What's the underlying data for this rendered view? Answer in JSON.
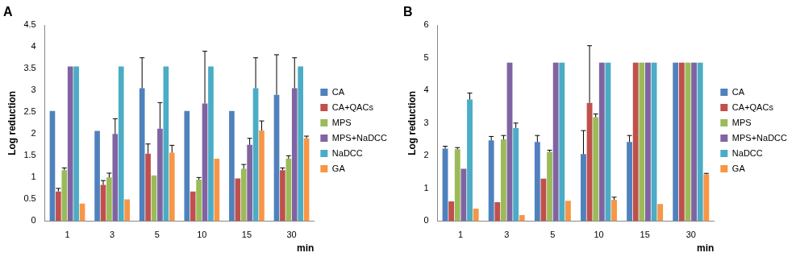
{
  "chart_data": [
    {
      "type": "bar",
      "title": "A",
      "x_label": "min",
      "y_label": "Log reduction",
      "categories": [
        "1",
        "3",
        "5",
        "10",
        "15",
        "30"
      ],
      "ylim": [
        0,
        4.5
      ],
      "yticks": [
        0,
        0.5,
        1,
        1.5,
        2,
        2.5,
        3,
        3.5,
        4,
        4.5
      ],
      "grid": false,
      "legend": "right",
      "series": [
        {
          "name": "CA",
          "color": "#4f81bd",
          "values": [
            2.53,
            2.07,
            3.05,
            2.53,
            2.53,
            2.9
          ],
          "errors": [
            null,
            null,
            0.7,
            null,
            null,
            0.92
          ]
        },
        {
          "name": "CA+QACs",
          "color": "#c0504d",
          "values": [
            0.68,
            0.83,
            1.55,
            0.68,
            0.98,
            1.17
          ],
          "errors": [
            0.07,
            0.1,
            0.22,
            null,
            null,
            0.05
          ]
        },
        {
          "name": "MPS",
          "color": "#9bbb59",
          "values": [
            1.17,
            1.0,
            1.05,
            0.95,
            1.2,
            1.43
          ],
          "errors": [
            0.05,
            0.1,
            null,
            0.05,
            0.1,
            0.07
          ]
        },
        {
          "name": "MPS+NaDCC",
          "color": "#8064a2",
          "values": [
            3.55,
            2.0,
            2.12,
            2.7,
            1.75,
            3.05
          ],
          "errors": [
            null,
            0.35,
            0.6,
            1.2,
            0.15,
            0.7
          ]
        },
        {
          "name": "NaDCC",
          "color": "#4bacc6",
          "values": [
            3.55,
            3.55,
            3.55,
            3.55,
            3.05,
            3.55
          ],
          "errors": [
            null,
            null,
            null,
            null,
            0.7,
            null
          ]
        },
        {
          "name": "GA",
          "color": "#f79646",
          "values": [
            0.4,
            0.5,
            1.57,
            1.43,
            2.08,
            1.9
          ],
          "errors": [
            null,
            null,
            0.17,
            null,
            0.22,
            0.05
          ]
        }
      ]
    },
    {
      "type": "bar",
      "title": "B",
      "x_label": "min",
      "y_label": "Log reduction",
      "categories": [
        "1",
        "3",
        "5",
        "10",
        "15",
        "30"
      ],
      "ylim": [
        0,
        6
      ],
      "yticks": [
        0,
        1,
        2,
        3,
        4,
        5,
        6
      ],
      "grid": false,
      "legend": "right",
      "series": [
        {
          "name": "CA",
          "color": "#4f81bd",
          "values": [
            2.22,
            2.47,
            2.42,
            2.05,
            2.42,
            4.85
          ],
          "errors": [
            0.07,
            0.12,
            0.2,
            0.72,
            0.2,
            null
          ]
        },
        {
          "name": "CA+QACs",
          "color": "#c0504d",
          "values": [
            0.6,
            0.58,
            1.3,
            3.62,
            4.85,
            4.85
          ],
          "errors": [
            null,
            null,
            null,
            1.75,
            null,
            null
          ]
        },
        {
          "name": "MPS",
          "color": "#9bbb59",
          "values": [
            2.2,
            2.5,
            2.12,
            3.18,
            4.85,
            4.85
          ],
          "errors": [
            0.05,
            0.12,
            0.05,
            0.1,
            null,
            null
          ]
        },
        {
          "name": "MPS+NaDCC",
          "color": "#8064a2",
          "values": [
            1.6,
            4.85,
            4.85,
            4.85,
            4.85,
            4.85
          ],
          "errors": [
            null,
            null,
            null,
            null,
            null,
            null
          ]
        },
        {
          "name": "NaDCC",
          "color": "#4bacc6",
          "values": [
            3.72,
            2.85,
            4.85,
            4.85,
            4.85,
            4.85
          ],
          "errors": [
            0.2,
            0.15,
            null,
            null,
            null,
            null
          ]
        },
        {
          "name": "GA",
          "color": "#f79646",
          "values": [
            0.38,
            0.18,
            0.62,
            0.65,
            0.52,
            1.43
          ],
          "errors": [
            null,
            null,
            null,
            0.08,
            null,
            0.03
          ]
        }
      ]
    }
  ]
}
